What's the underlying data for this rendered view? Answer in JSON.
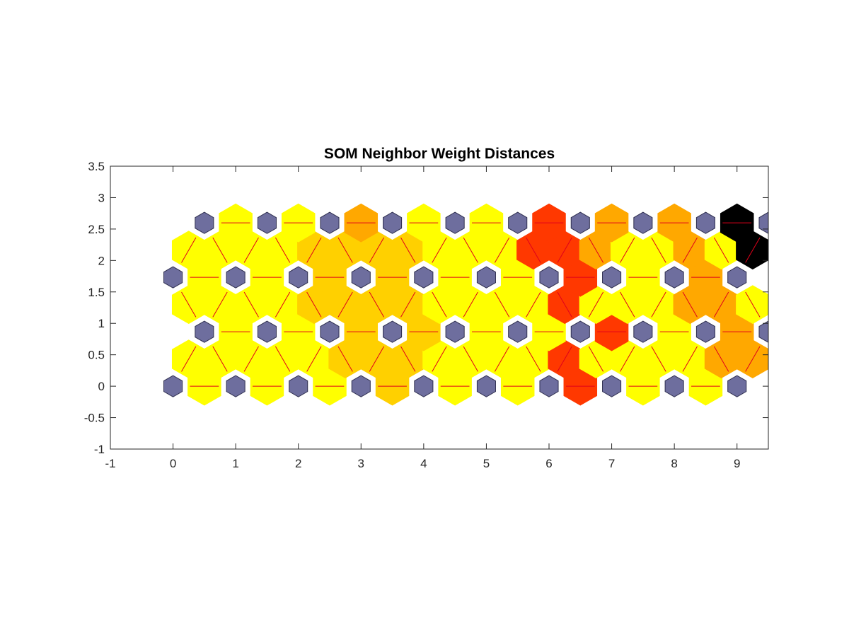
{
  "chart_data": {
    "type": "heatmap",
    "title": "SOM Neighbor Weight Distances",
    "xlabel": "",
    "ylabel": "",
    "xlim": [
      -1,
      9.5
    ],
    "ylim": [
      -1,
      3.5
    ],
    "xticks": [
      -1,
      0,
      1,
      2,
      3,
      4,
      5,
      6,
      7,
      8,
      9
    ],
    "yticks": [
      -1,
      -0.5,
      0,
      0.5,
      1,
      1.5,
      2,
      2.5,
      3,
      3.5
    ],
    "xtick_labels": [
      "-1",
      "0",
      "1",
      "2",
      "3",
      "4",
      "5",
      "6",
      "7",
      "8",
      "9"
    ],
    "ytick_labels": [
      "-1",
      "-0.5",
      "0",
      "0.5",
      "1",
      "1.5",
      "2",
      "2.5",
      "3",
      "3.5"
    ],
    "grid": "hexagonal 10x4 neurons",
    "neuron_color": "#6e6e9e",
    "connection_color": "#e0001a",
    "colormap": [
      "#ffff00",
      "#ffd000",
      "#ffa800",
      "#ff3800",
      "#000000"
    ],
    "neurons": [
      {
        "x": 0,
        "y": 0
      },
      {
        "x": 1,
        "y": 0
      },
      {
        "x": 2,
        "y": 0
      },
      {
        "x": 3,
        "y": 0
      },
      {
        "x": 4,
        "y": 0
      },
      {
        "x": 5,
        "y": 0
      },
      {
        "x": 6,
        "y": 0
      },
      {
        "x": 7,
        "y": 0
      },
      {
        "x": 8,
        "y": 0
      },
      {
        "x": 9,
        "y": 0
      },
      {
        "x": 0.5,
        "y": 0.866
      },
      {
        "x": 1.5,
        "y": 0.866
      },
      {
        "x": 2.5,
        "y": 0.866
      },
      {
        "x": 3.5,
        "y": 0.866
      },
      {
        "x": 4.5,
        "y": 0.866
      },
      {
        "x": 5.5,
        "y": 0.866
      },
      {
        "x": 6.5,
        "y": 0.866
      },
      {
        "x": 7.5,
        "y": 0.866
      },
      {
        "x": 8.5,
        "y": 0.866
      },
      {
        "x": 9.5,
        "y": 0.866
      },
      {
        "x": 0,
        "y": 1.732
      },
      {
        "x": 1,
        "y": 1.732
      },
      {
        "x": 2,
        "y": 1.732
      },
      {
        "x": 3,
        "y": 1.732
      },
      {
        "x": 4,
        "y": 1.732
      },
      {
        "x": 5,
        "y": 1.732
      },
      {
        "x": 6,
        "y": 1.732
      },
      {
        "x": 7,
        "y": 1.732
      },
      {
        "x": 8,
        "y": 1.732
      },
      {
        "x": 9,
        "y": 1.732
      },
      {
        "x": 0.5,
        "y": 2.598
      },
      {
        "x": 1.5,
        "y": 2.598
      },
      {
        "x": 2.5,
        "y": 2.598
      },
      {
        "x": 3.5,
        "y": 2.598
      },
      {
        "x": 4.5,
        "y": 2.598
      },
      {
        "x": 5.5,
        "y": 2.598
      },
      {
        "x": 6.5,
        "y": 2.598
      },
      {
        "x": 7.5,
        "y": 2.598
      },
      {
        "x": 8.5,
        "y": 2.598
      },
      {
        "x": 9.5,
        "y": 2.598
      }
    ],
    "neighbor_distances": [
      {
        "x": 0.5,
        "y": 0,
        "level": 0
      },
      {
        "x": 1.5,
        "y": 0,
        "level": 0
      },
      {
        "x": 2.5,
        "y": 0,
        "level": 0
      },
      {
        "x": 3.5,
        "y": 0,
        "level": 1
      },
      {
        "x": 4.5,
        "y": 0,
        "level": 0
      },
      {
        "x": 5.5,
        "y": 0,
        "level": 0
      },
      {
        "x": 6.5,
        "y": 0,
        "level": 3
      },
      {
        "x": 7.5,
        "y": 0,
        "level": 0
      },
      {
        "x": 8.5,
        "y": 0,
        "level": 0
      },
      {
        "x": 0.25,
        "y": 0.433,
        "level": 0
      },
      {
        "x": 0.75,
        "y": 0.433,
        "level": 0
      },
      {
        "x": 1.25,
        "y": 0.433,
        "level": 0
      },
      {
        "x": 1.75,
        "y": 0.433,
        "level": 0
      },
      {
        "x": 2.25,
        "y": 0.433,
        "level": 0
      },
      {
        "x": 2.75,
        "y": 0.433,
        "level": 1
      },
      {
        "x": 3.25,
        "y": 0.433,
        "level": 1
      },
      {
        "x": 3.75,
        "y": 0.433,
        "level": 1
      },
      {
        "x": 4.25,
        "y": 0.433,
        "level": 0
      },
      {
        "x": 4.75,
        "y": 0.433,
        "level": 0
      },
      {
        "x": 5.25,
        "y": 0.433,
        "level": 0
      },
      {
        "x": 5.75,
        "y": 0.433,
        "level": 0
      },
      {
        "x": 6.25,
        "y": 0.433,
        "level": 3
      },
      {
        "x": 6.75,
        "y": 0.433,
        "level": 0
      },
      {
        "x": 7.25,
        "y": 0.433,
        "level": 0
      },
      {
        "x": 7.75,
        "y": 0.433,
        "level": 0
      },
      {
        "x": 8.25,
        "y": 0.433,
        "level": 0
      },
      {
        "x": 8.75,
        "y": 0.433,
        "level": 2
      },
      {
        "x": 9.25,
        "y": 0.433,
        "level": 2
      },
      {
        "x": 1,
        "y": 0.866,
        "level": 0
      },
      {
        "x": 2,
        "y": 0.866,
        "level": 0
      },
      {
        "x": 3,
        "y": 0.866,
        "level": 1
      },
      {
        "x": 4,
        "y": 0.866,
        "level": 1
      },
      {
        "x": 5,
        "y": 0.866,
        "level": 0
      },
      {
        "x": 6,
        "y": 0.866,
        "level": 0
      },
      {
        "x": 7,
        "y": 0.866,
        "level": 3
      },
      {
        "x": 8,
        "y": 0.866,
        "level": 0
      },
      {
        "x": 9,
        "y": 0.866,
        "level": 2
      },
      {
        "x": 0.25,
        "y": 1.299,
        "level": 0
      },
      {
        "x": 0.75,
        "y": 1.299,
        "level": 0
      },
      {
        "x": 1.25,
        "y": 1.299,
        "level": 0
      },
      {
        "x": 1.75,
        "y": 1.299,
        "level": 0
      },
      {
        "x": 2.25,
        "y": 1.299,
        "level": 1
      },
      {
        "x": 2.75,
        "y": 1.299,
        "level": 1
      },
      {
        "x": 3.25,
        "y": 1.299,
        "level": 1
      },
      {
        "x": 3.75,
        "y": 1.299,
        "level": 1
      },
      {
        "x": 4.25,
        "y": 1.299,
        "level": 0
      },
      {
        "x": 4.75,
        "y": 1.299,
        "level": 0
      },
      {
        "x": 5.25,
        "y": 1.299,
        "level": 0
      },
      {
        "x": 5.75,
        "y": 1.299,
        "level": 0
      },
      {
        "x": 6.25,
        "y": 1.299,
        "level": 3
      },
      {
        "x": 6.75,
        "y": 1.299,
        "level": 0
      },
      {
        "x": 7.25,
        "y": 1.299,
        "level": 0
      },
      {
        "x": 7.75,
        "y": 1.299,
        "level": 0
      },
      {
        "x": 8.25,
        "y": 1.299,
        "level": 2
      },
      {
        "x": 8.75,
        "y": 1.299,
        "level": 2
      },
      {
        "x": 9.25,
        "y": 1.299,
        "level": 0
      },
      {
        "x": 0.5,
        "y": 1.732,
        "level": 0
      },
      {
        "x": 1.5,
        "y": 1.732,
        "level": 0
      },
      {
        "x": 2.5,
        "y": 1.732,
        "level": 1
      },
      {
        "x": 3.5,
        "y": 1.732,
        "level": 1
      },
      {
        "x": 4.5,
        "y": 1.732,
        "level": 0
      },
      {
        "x": 5.5,
        "y": 1.732,
        "level": 0
      },
      {
        "x": 6.5,
        "y": 1.732,
        "level": 3
      },
      {
        "x": 7.5,
        "y": 1.732,
        "level": 0
      },
      {
        "x": 8.5,
        "y": 1.732,
        "level": 2
      },
      {
        "x": 0.25,
        "y": 2.165,
        "level": 0
      },
      {
        "x": 0.75,
        "y": 2.165,
        "level": 0
      },
      {
        "x": 1.25,
        "y": 2.165,
        "level": 0
      },
      {
        "x": 1.75,
        "y": 2.165,
        "level": 0
      },
      {
        "x": 2.25,
        "y": 2.165,
        "level": 1
      },
      {
        "x": 2.75,
        "y": 2.165,
        "level": 1
      },
      {
        "x": 3.25,
        "y": 2.165,
        "level": 1
      },
      {
        "x": 3.75,
        "y": 2.165,
        "level": 1
      },
      {
        "x": 4.25,
        "y": 2.165,
        "level": 0
      },
      {
        "x": 4.75,
        "y": 2.165,
        "level": 0
      },
      {
        "x": 5.25,
        "y": 2.165,
        "level": 0
      },
      {
        "x": 5.75,
        "y": 2.165,
        "level": 3
      },
      {
        "x": 6.25,
        "y": 2.165,
        "level": 3
      },
      {
        "x": 6.75,
        "y": 2.165,
        "level": 2
      },
      {
        "x": 7.25,
        "y": 2.165,
        "level": 0
      },
      {
        "x": 7.75,
        "y": 2.165,
        "level": 0
      },
      {
        "x": 8.25,
        "y": 2.165,
        "level": 2
      },
      {
        "x": 8.75,
        "y": 2.165,
        "level": 0
      },
      {
        "x": 9.25,
        "y": 2.165,
        "level": 4
      },
      {
        "x": 1,
        "y": 2.598,
        "level": 0
      },
      {
        "x": 2,
        "y": 2.598,
        "level": 0
      },
      {
        "x": 3,
        "y": 2.598,
        "level": 2
      },
      {
        "x": 4,
        "y": 2.598,
        "level": 0
      },
      {
        "x": 5,
        "y": 2.598,
        "level": 0
      },
      {
        "x": 6,
        "y": 2.598,
        "level": 3
      },
      {
        "x": 7,
        "y": 2.598,
        "level": 2
      },
      {
        "x": 8,
        "y": 2.598,
        "level": 2
      },
      {
        "x": 9,
        "y": 2.598,
        "level": 4
      }
    ]
  }
}
